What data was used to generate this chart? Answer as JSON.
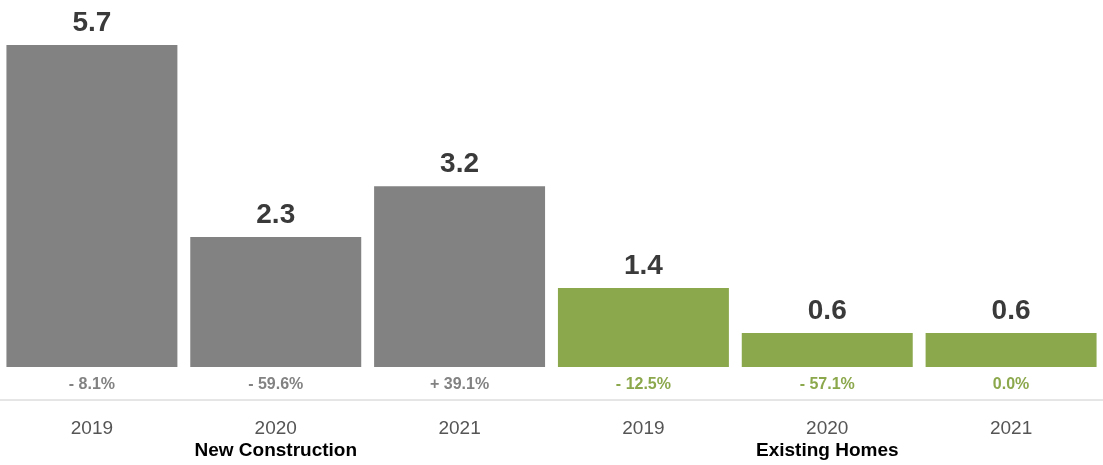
{
  "chart_data": {
    "type": "bar",
    "categories": [
      "2019",
      "2020",
      "2021",
      "2019",
      "2020",
      "2021"
    ],
    "series": [
      {
        "color": "#828282",
        "values": [
          5.7,
          2.3,
          3.2,
          null,
          null,
          null
        ]
      },
      {
        "color": "#8ca84c",
        "values": [
          null,
          null,
          null,
          1.4,
          0.6,
          0.6
        ]
      }
    ],
    "stacked": true,
    "ylim": [
      0,
      5.7
    ],
    "tick_labels": "x",
    "grid": false,
    "legend": false,
    "data_labels": true,
    "annotations": [
      "- 8.1%",
      "- 59.6%",
      "+ 39.1%",
      "- 12.5%",
      "- 57.1%",
      "0.0%",
      "New Construction",
      "Existing Homes"
    ]
  }
}
